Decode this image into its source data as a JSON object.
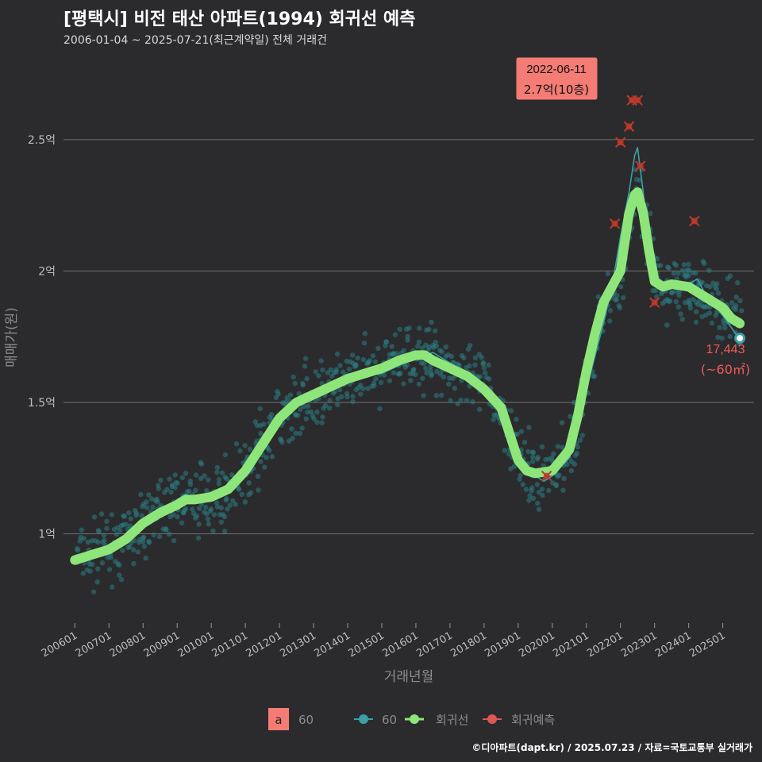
{
  "title": "[평택시] 비전 태산 아파트(1994) 회귀선 예측",
  "subtitle": "2006-01-04 ~ 2025-07-21(최근계약일) 전체 거래건",
  "caption": "©디아파트(dapt.kr) / 2025.07.23 / 자료=국토교통부 실거래가",
  "colors": {
    "background": "#2b2b2d",
    "grid": "#707070",
    "scatter": "#2c7d83",
    "trend_line": "#3aa0a6",
    "regression": "#8ee67a",
    "prediction": "#c0392b",
    "highlight_box": "#f47c75",
    "last_label": "#f05a5a"
  },
  "annotation": {
    "date": "2022-06-11",
    "price": "2.7억(10층)"
  },
  "last_point": {
    "value": "17,443",
    "area": "(~60㎡)"
  },
  "legend": {
    "key_letter": "a",
    "key_label": "60",
    "items": [
      {
        "label": "60",
        "icon": "line-point-icon"
      },
      {
        "label": "회귀선",
        "icon": "line-point-icon"
      },
      {
        "label": "회귀예측",
        "icon": "cross-point-icon"
      }
    ]
  },
  "chart_data": {
    "type": "scatter",
    "xlabel": "거래년월",
    "ylabel": "매매가(원)",
    "x_ticks": [
      "200601",
      "200701",
      "200801",
      "200901",
      "201001",
      "201101",
      "201201",
      "201301",
      "201401",
      "201501",
      "201601",
      "201701",
      "201801",
      "201901",
      "202001",
      "202101",
      "202201",
      "202301",
      "202401",
      "202501"
    ],
    "y_ticks": [
      {
        "value": 1.0,
        "label": "1억"
      },
      {
        "value": 1.5,
        "label": "1.5억"
      },
      {
        "value": 2.0,
        "label": "2억"
      },
      {
        "value": 2.5,
        "label": "2.5억"
      }
    ],
    "xlim": [
      "2005-09",
      "2025-12"
    ],
    "ylim": [
      0.66,
      2.82
    ],
    "y_unit": "억",
    "series": [
      {
        "name": "60",
        "kind": "monthly_mean",
        "points": [
          [
            "2006-01",
            0.9
          ],
          [
            "2006-07",
            0.92
          ],
          [
            "2007-01",
            0.94
          ],
          [
            "2007-07",
            0.98
          ],
          [
            "2008-01",
            1.04
          ],
          [
            "2008-07",
            1.07
          ],
          [
            "2009-01",
            1.13
          ],
          [
            "2009-04",
            1.15
          ],
          [
            "2009-07",
            1.13
          ],
          [
            "2010-01",
            1.14
          ],
          [
            "2010-07",
            1.18
          ],
          [
            "2011-01",
            1.23
          ],
          [
            "2011-04",
            1.29
          ],
          [
            "2011-10",
            1.39
          ],
          [
            "2012-01",
            1.46
          ],
          [
            "2012-07",
            1.51
          ],
          [
            "2013-01",
            1.53
          ],
          [
            "2013-07",
            1.55
          ],
          [
            "2014-01",
            1.58
          ],
          [
            "2014-07",
            1.6
          ],
          [
            "2015-01",
            1.61
          ],
          [
            "2015-07",
            1.64
          ],
          [
            "2016-01",
            1.67
          ],
          [
            "2016-07",
            1.69
          ],
          [
            "2017-01",
            1.65
          ],
          [
            "2017-07",
            1.61
          ],
          [
            "2018-01",
            1.56
          ],
          [
            "2018-07",
            1.48
          ],
          [
            "2018-10",
            1.4
          ],
          [
            "2019-01",
            1.29
          ],
          [
            "2019-07",
            1.22
          ],
          [
            "2019-10",
            1.2
          ],
          [
            "2020-01",
            1.22
          ],
          [
            "2020-07",
            1.29
          ],
          [
            "2020-10",
            1.39
          ],
          [
            "2021-01",
            1.55
          ],
          [
            "2021-07",
            1.8
          ],
          [
            "2021-10",
            1.94
          ],
          [
            "2022-01",
            2.13
          ],
          [
            "2022-04",
            2.3
          ],
          [
            "2022-06",
            2.44
          ],
          [
            "2022-07",
            2.47
          ],
          [
            "2022-09",
            2.3
          ],
          [
            "2022-11",
            2.08
          ],
          [
            "2023-01",
            1.96
          ],
          [
            "2023-07",
            1.94
          ],
          [
            "2024-01",
            1.95
          ],
          [
            "2024-04",
            1.97
          ],
          [
            "2024-07",
            1.91
          ],
          [
            "2025-01",
            1.83
          ],
          [
            "2025-07",
            1.74
          ]
        ]
      },
      {
        "name": "회귀선",
        "kind": "regression",
        "points": [
          [
            "2006-01",
            0.9
          ],
          [
            "2006-07",
            0.92
          ],
          [
            "2007-01",
            0.94
          ],
          [
            "2007-07",
            0.98
          ],
          [
            "2008-01",
            1.04
          ],
          [
            "2008-07",
            1.08
          ],
          [
            "2009-01",
            1.11
          ],
          [
            "2009-04",
            1.13
          ],
          [
            "2009-07",
            1.13
          ],
          [
            "2010-01",
            1.14
          ],
          [
            "2010-07",
            1.17
          ],
          [
            "2011-01",
            1.24
          ],
          [
            "2011-07",
            1.34
          ],
          [
            "2012-01",
            1.44
          ],
          [
            "2012-07",
            1.5
          ],
          [
            "2013-01",
            1.53
          ],
          [
            "2013-07",
            1.56
          ],
          [
            "2014-01",
            1.59
          ],
          [
            "2014-07",
            1.61
          ],
          [
            "2015-01",
            1.63
          ],
          [
            "2015-07",
            1.66
          ],
          [
            "2016-01",
            1.68
          ],
          [
            "2016-04",
            1.68
          ],
          [
            "2016-07",
            1.66
          ],
          [
            "2017-01",
            1.63
          ],
          [
            "2017-07",
            1.6
          ],
          [
            "2018-01",
            1.55
          ],
          [
            "2018-07",
            1.48
          ],
          [
            "2018-10",
            1.38
          ],
          [
            "2019-01",
            1.28
          ],
          [
            "2019-04",
            1.24
          ],
          [
            "2019-07",
            1.23
          ],
          [
            "2020-01",
            1.24
          ],
          [
            "2020-07",
            1.32
          ],
          [
            "2020-10",
            1.45
          ],
          [
            "2021-01",
            1.62
          ],
          [
            "2021-04",
            1.76
          ],
          [
            "2021-07",
            1.88
          ],
          [
            "2022-01",
            2.0
          ],
          [
            "2022-04",
            2.22
          ],
          [
            "2022-06",
            2.29
          ],
          [
            "2022-07",
            2.3
          ],
          [
            "2022-09",
            2.22
          ],
          [
            "2022-11",
            2.08
          ],
          [
            "2023-01",
            1.96
          ],
          [
            "2023-04",
            1.94
          ],
          [
            "2023-07",
            1.95
          ],
          [
            "2024-01",
            1.94
          ],
          [
            "2024-07",
            1.9
          ],
          [
            "2025-01",
            1.86
          ],
          [
            "2025-04",
            1.82
          ],
          [
            "2025-07",
            1.8
          ]
        ]
      },
      {
        "name": "회귀예측",
        "kind": "prediction",
        "points": [
          [
            "2019-11",
            1.22
          ],
          [
            "2021-11",
            2.18
          ],
          [
            "2022-01",
            2.49
          ],
          [
            "2022-04",
            2.55
          ],
          [
            "2022-05",
            2.65
          ],
          [
            "2022-07",
            2.65
          ],
          [
            "2022-08",
            2.4
          ],
          [
            "2023-01",
            1.88
          ],
          [
            "2024-03",
            2.19
          ]
        ]
      }
    ],
    "last_point": [
      "2025-07",
      1.7443
    ]
  }
}
